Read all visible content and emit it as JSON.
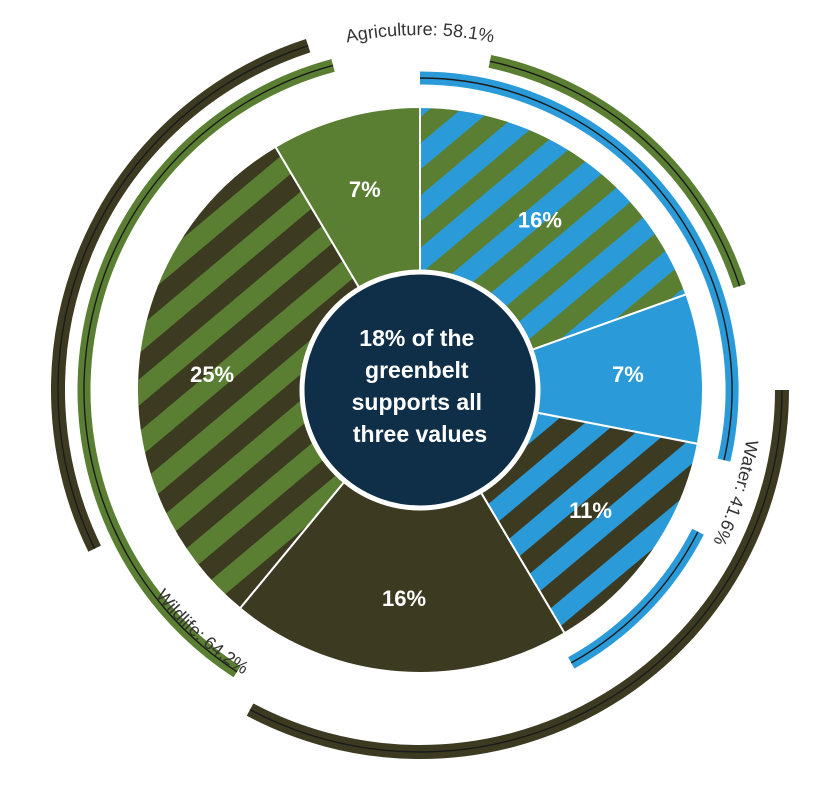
{
  "colors": {
    "agriculture": "#5a7f32",
    "water": "#2a9bd8",
    "wildlife": "#3d3a22",
    "center": "#0f2f48",
    "white": "#ffffff"
  },
  "chart_data": {
    "type": "pie",
    "center_text": [
      "18% of the",
      "greenbelt",
      "supports all",
      "three values"
    ],
    "slices": [
      {
        "label": "16%",
        "value": 16,
        "fill": "water",
        "stripe": "agriculture"
      },
      {
        "label": "7%",
        "value": 7,
        "fill": "water",
        "stripe": null
      },
      {
        "label": "11%",
        "value": 11,
        "fill": "water",
        "stripe": "wildlife"
      },
      {
        "label": "16%",
        "value": 16,
        "fill": "wildlife",
        "stripe": null
      },
      {
        "label": "25%",
        "value": 25,
        "fill": "agriculture",
        "stripe": "wildlife"
      },
      {
        "label": "7%",
        "value": 7,
        "fill": "agriculture",
        "stripe": null
      }
    ],
    "rings": [
      {
        "name": "Agriculture",
        "value": 58.1,
        "label": "Agriculture: 58.1%",
        "color": "agriculture"
      },
      {
        "name": "Water",
        "value": 41.6,
        "label": "Water: 41.6%",
        "color": "water"
      },
      {
        "name": "Wildlife",
        "value": 64.2,
        "label": "Wildlife: 64.2%",
        "color": "wildlife"
      }
    ]
  }
}
